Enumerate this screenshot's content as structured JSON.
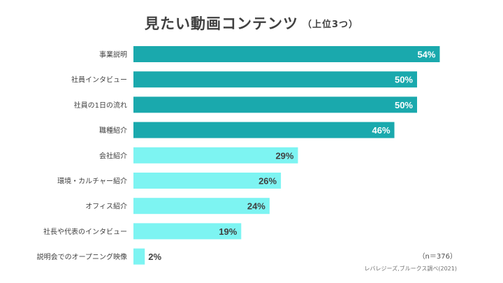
{
  "chart_data": {
    "type": "bar",
    "orientation": "horizontal",
    "title": "見たい動画コンテンツ",
    "subtitle": "（上位3つ）",
    "categories": [
      "事業説明",
      "社員インタビュー",
      "社員の1日の流れ",
      "職種紹介",
      "会社紹介",
      "環境・カルチャー紹介",
      "オフィス紹介",
      "社長や代表のインタビュー",
      "説明会でのオープニング映像"
    ],
    "values": [
      54,
      50,
      50,
      46,
      29,
      26,
      24,
      19,
      2
    ],
    "value_labels": [
      "54%",
      "50%",
      "50%",
      "46%",
      "29%",
      "26%",
      "24%",
      "19%",
      "2%"
    ],
    "xlim": [
      0,
      100
    ],
    "grid": false,
    "legend": "none",
    "colors": {
      "top": "#1aa9ad",
      "other": "#7df4f2",
      "label_on_dark": "#ffffff",
      "label_on_light": "#404040"
    },
    "highlight_count": 4
  },
  "notes": {
    "sample_size": "（n＝376）",
    "source": "レバレジーズ,ブルークス調べ(2021)"
  }
}
